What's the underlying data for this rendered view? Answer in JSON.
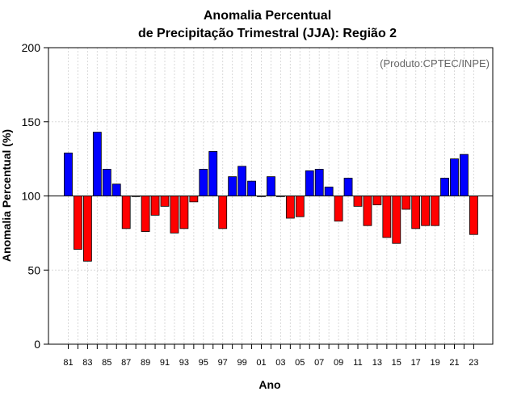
{
  "chart_data": {
    "type": "bar",
    "title_line1": "Anomalia Percentual",
    "title_line2": "de Precipitação Trimestral (JJA): Região 2",
    "xlabel": "Ano",
    "ylabel": "Anomalia Percentual (%)",
    "credit": "(Produto:CPTEC/INPE)",
    "ylim": [
      0,
      200
    ],
    "yticks": [
      0,
      50,
      100,
      150,
      200
    ],
    "baseline": 100,
    "grid": true,
    "colors": {
      "above": "#0000ff",
      "below": "#ff0000",
      "edge": "#000000",
      "grid": "#d9d9d9"
    },
    "tick_labels": [
      "81",
      "83",
      "85",
      "87",
      "89",
      "91",
      "93",
      "95",
      "97",
      "99",
      "01",
      "03",
      "05",
      "07",
      "09",
      "11",
      "13",
      "15",
      "17",
      "19",
      "21",
      "23"
    ],
    "categories": [
      "1981",
      "1982",
      "1983",
      "1984",
      "1985",
      "1986",
      "1987",
      "1988",
      "1989",
      "1990",
      "1991",
      "1992",
      "1993",
      "1994",
      "1995",
      "1996",
      "1997",
      "1998",
      "1999",
      "2000",
      "2001",
      "2002",
      "2003",
      "2004",
      "2005",
      "2006",
      "2007",
      "2008",
      "2009",
      "2010",
      "2011",
      "2012",
      "2013",
      "2014",
      "2015",
      "2016",
      "2017",
      "2018",
      "2019",
      "2020",
      "2021",
      "2022",
      "2023"
    ],
    "values": [
      129,
      64,
      56,
      143,
      118,
      108,
      78,
      100,
      76,
      87,
      93,
      75,
      78,
      96,
      118,
      130,
      78,
      113,
      120,
      110,
      100,
      113,
      100,
      85,
      86,
      117,
      118,
      106,
      83,
      112,
      93,
      80,
      94,
      72,
      68,
      91,
      78,
      80,
      80,
      112,
      125,
      128,
      74
    ]
  }
}
